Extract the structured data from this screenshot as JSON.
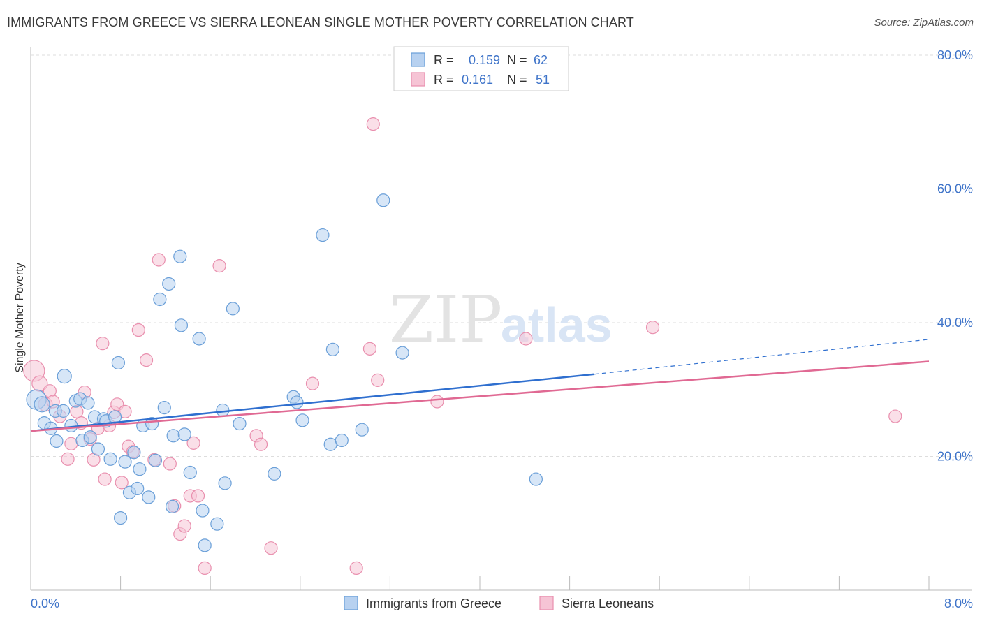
{
  "header": {
    "title": "IMMIGRANTS FROM GREECE VS SIERRA LEONEAN SINGLE MOTHER POVERTY CORRELATION CHART",
    "source": "Source: ZipAtlas.com"
  },
  "watermark": {
    "zip": "ZIP",
    "atlas": "atlas"
  },
  "colors": {
    "greece": "#6a9fd8",
    "greece_fill": "#b7d1f0",
    "greece_line": "#2f6fcf",
    "sierra": "#e98fae",
    "sierra_fill": "#f6c4d5",
    "sierra_line": "#e06993",
    "tick_label": "#3f74c9",
    "grid": "#dddddd"
  },
  "legend_top": {
    "rows": [
      {
        "r_label": "R =",
        "r_value": "0.159",
        "n_label": "N =",
        "n_value": "62"
      },
      {
        "r_label": "R =",
        "r_value": "0.161",
        "n_label": "N =",
        "n_value": "51"
      }
    ]
  },
  "chart_data": {
    "type": "scatter",
    "title": "IMMIGRANTS FROM GREECE VS SIERRA LEONEAN SINGLE MOTHER POVERTY CORRELATION CHART",
    "xlabel": "",
    "ylabel": "Single Mother Poverty",
    "xlim": [
      0,
      8
    ],
    "ylim": [
      0,
      80
    ],
    "x_tick_labels": [
      "0.0%",
      "8.0%"
    ],
    "y_ticks": [
      20,
      40,
      60,
      80
    ],
    "y_tick_labels": [
      "20.0%",
      "40.0%",
      "60.0%",
      "80.0%"
    ],
    "grid": "horizontal-dashed",
    "legend_position": "bottom-center",
    "series": [
      {
        "name": "Immigrants from Greece",
        "R": 0.159,
        "N": 62,
        "trend": {
          "x0": 0,
          "y0": 23.8,
          "x1": 5.02,
          "y1": 32.3,
          "dash_x1": 8.0,
          "dash_y1": 37.5
        },
        "points": [
          [
            0.05,
            28.5,
            14
          ],
          [
            0.1,
            27.8,
            11
          ],
          [
            0.12,
            25.0,
            9
          ],
          [
            0.18,
            24.2,
            9
          ],
          [
            0.22,
            26.8,
            9
          ],
          [
            0.23,
            22.3,
            9
          ],
          [
            0.29,
            26.8,
            9
          ],
          [
            0.3,
            32.0,
            10
          ],
          [
            0.36,
            24.6,
            9
          ],
          [
            0.4,
            28.3,
            9
          ],
          [
            0.44,
            28.6,
            9
          ],
          [
            0.46,
            22.4,
            9
          ],
          [
            0.51,
            28.0,
            9
          ],
          [
            0.53,
            22.9,
            9
          ],
          [
            0.57,
            25.9,
            9
          ],
          [
            0.6,
            21.1,
            9
          ],
          [
            0.65,
            25.6,
            9
          ],
          [
            0.67,
            25.3,
            9
          ],
          [
            0.71,
            19.6,
            9
          ],
          [
            0.75,
            25.9,
            9
          ],
          [
            0.78,
            34.0,
            9
          ],
          [
            0.8,
            10.8,
            9
          ],
          [
            0.84,
            19.2,
            9
          ],
          [
            0.88,
            14.6,
            9
          ],
          [
            0.92,
            20.6,
            9
          ],
          [
            0.95,
            15.2,
            9
          ],
          [
            0.97,
            18.1,
            9
          ],
          [
            1.0,
            24.6,
            9
          ],
          [
            1.05,
            13.9,
            9
          ],
          [
            1.08,
            24.9,
            9
          ],
          [
            1.11,
            19.4,
            9
          ],
          [
            1.15,
            43.5,
            9
          ],
          [
            1.19,
            27.3,
            9
          ],
          [
            1.23,
            45.8,
            9
          ],
          [
            1.26,
            12.5,
            9
          ],
          [
            1.27,
            23.1,
            9
          ],
          [
            1.33,
            49.9,
            9
          ],
          [
            1.34,
            39.6,
            9
          ],
          [
            1.37,
            23.3,
            9
          ],
          [
            1.42,
            17.6,
            9
          ],
          [
            1.5,
            37.6,
            9
          ],
          [
            1.53,
            11.9,
            9
          ],
          [
            1.55,
            6.7,
            9
          ],
          [
            1.66,
            9.9,
            9
          ],
          [
            1.71,
            26.9,
            9
          ],
          [
            1.73,
            16.0,
            9
          ],
          [
            1.8,
            42.1,
            9
          ],
          [
            1.86,
            24.9,
            9
          ],
          [
            2.17,
            17.4,
            9
          ],
          [
            2.34,
            28.9,
            9
          ],
          [
            2.37,
            28.1,
            9
          ],
          [
            2.42,
            25.4,
            9
          ],
          [
            2.6,
            53.1,
            9
          ],
          [
            2.67,
            21.8,
            9
          ],
          [
            2.69,
            36.0,
            9
          ],
          [
            2.77,
            22.4,
            9
          ],
          [
            2.95,
            24.0,
            9
          ],
          [
            3.14,
            58.3,
            9
          ],
          [
            3.31,
            35.5,
            9
          ],
          [
            4.5,
            16.6,
            9
          ]
        ]
      },
      {
        "name": "Sierra Leoneans",
        "R": 0.161,
        "N": 51,
        "trend": {
          "x0": 0,
          "y0": 23.8,
          "x1": 8.0,
          "y1": 34.2
        },
        "points": [
          [
            0.03,
            32.8,
            15
          ],
          [
            0.08,
            30.9,
            11
          ],
          [
            0.13,
            27.8,
            10
          ],
          [
            0.17,
            29.8,
            9
          ],
          [
            0.2,
            28.2,
            9
          ],
          [
            0.26,
            26.0,
            9
          ],
          [
            0.33,
            19.6,
            9
          ],
          [
            0.36,
            21.9,
            9
          ],
          [
            0.41,
            26.7,
            9
          ],
          [
            0.45,
            25.0,
            9
          ],
          [
            0.48,
            29.6,
            9
          ],
          [
            0.53,
            22.6,
            9
          ],
          [
            0.56,
            19.5,
            9
          ],
          [
            0.6,
            24.2,
            9
          ],
          [
            0.64,
            36.9,
            9
          ],
          [
            0.66,
            16.6,
            9
          ],
          [
            0.7,
            24.6,
            9
          ],
          [
            0.74,
            26.6,
            9
          ],
          [
            0.77,
            27.8,
            9
          ],
          [
            0.81,
            16.1,
            9
          ],
          [
            0.84,
            26.7,
            9
          ],
          [
            0.87,
            21.5,
            9
          ],
          [
            0.91,
            20.7,
            9
          ],
          [
            0.96,
            38.9,
            9
          ],
          [
            1.03,
            34.4,
            9
          ],
          [
            1.1,
            19.5,
            9
          ],
          [
            1.14,
            49.4,
            9
          ],
          [
            1.24,
            18.9,
            9
          ],
          [
            1.28,
            12.6,
            9
          ],
          [
            1.33,
            8.4,
            9
          ],
          [
            1.37,
            9.6,
            9
          ],
          [
            1.42,
            14.1,
            9
          ],
          [
            1.45,
            22.0,
            9
          ],
          [
            1.49,
            14.1,
            9
          ],
          [
            1.55,
            3.3,
            9
          ],
          [
            1.68,
            48.5,
            9
          ],
          [
            2.01,
            23.1,
            9
          ],
          [
            2.05,
            21.8,
            9
          ],
          [
            2.14,
            6.3,
            9
          ],
          [
            2.51,
            30.9,
            9
          ],
          [
            2.9,
            3.3,
            9
          ],
          [
            3.02,
            36.1,
            9
          ],
          [
            3.05,
            69.7,
            9
          ],
          [
            3.09,
            31.4,
            9
          ],
          [
            3.62,
            28.2,
            9
          ],
          [
            4.41,
            37.6,
            9
          ],
          [
            5.54,
            39.3,
            9
          ],
          [
            7.7,
            26.0,
            9
          ]
        ]
      }
    ]
  }
}
